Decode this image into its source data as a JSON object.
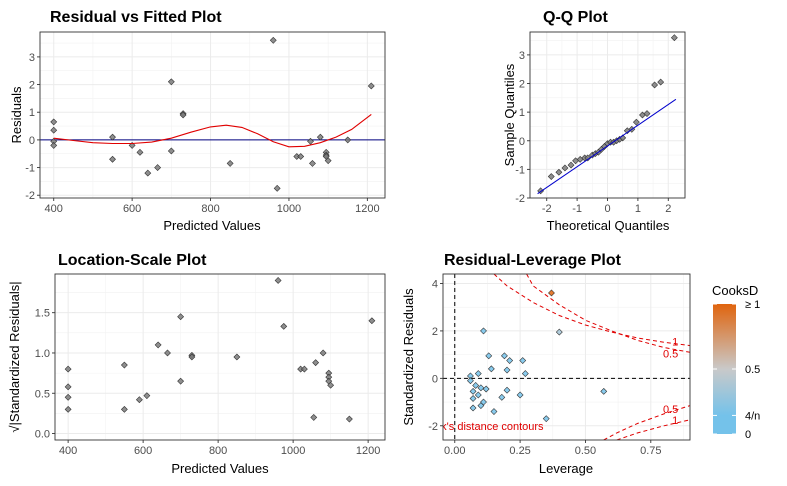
{
  "colors": {
    "point_fill": "#7a7a7a",
    "smooth": "#e00000",
    "zero_line": "#000080",
    "qq_line": "#0000cc",
    "contour": "#e00000",
    "cooks_low": "#74c2ea",
    "cooks_mid": "#c9c9c9",
    "cooks_high": "#e0640e"
  },
  "chart_data": [
    {
      "id": "rvf",
      "type": "scatter",
      "title": "Residual vs Fitted Plot",
      "xlabel": "Predicted Values",
      "ylabel": "Residuals",
      "xlim": [
        365,
        1245
      ],
      "ylim": [
        -2.1,
        3.9
      ],
      "xticks": [
        400,
        600,
        800,
        1000,
        1200
      ],
      "yticks": [
        -2,
        -1,
        0,
        1,
        2,
        3
      ],
      "xminor": [
        500,
        700,
        900,
        1100
      ],
      "yminor": [
        -1.5,
        -0.5,
        0.5,
        1.5,
        2.5,
        3.5
      ],
      "hline": 0,
      "points": [
        {
          "x": 400,
          "y": 0.65
        },
        {
          "x": 400,
          "y": 0.35
        },
        {
          "x": 400,
          "y": -0.05
        },
        {
          "x": 400,
          "y": -0.2
        },
        {
          "x": 550,
          "y": 0.1
        },
        {
          "x": 550,
          "y": -0.7
        },
        {
          "x": 600,
          "y": -0.2
        },
        {
          "x": 620,
          "y": -0.45
        },
        {
          "x": 640,
          "y": -1.2
        },
        {
          "x": 665,
          "y": -1.0
        },
        {
          "x": 700,
          "y": 2.1
        },
        {
          "x": 700,
          "y": -0.4
        },
        {
          "x": 730,
          "y": 0.95
        },
        {
          "x": 730,
          "y": 0.9
        },
        {
          "x": 850,
          "y": -0.85
        },
        {
          "x": 960,
          "y": 3.6
        },
        {
          "x": 970,
          "y": -1.75
        },
        {
          "x": 1020,
          "y": -0.6
        },
        {
          "x": 1030,
          "y": -0.6
        },
        {
          "x": 1055,
          "y": -0.05
        },
        {
          "x": 1060,
          "y": -0.85
        },
        {
          "x": 1080,
          "y": 0.1
        },
        {
          "x": 1095,
          "y": -0.45
        },
        {
          "x": 1095,
          "y": -0.55
        },
        {
          "x": 1095,
          "y": -0.6
        },
        {
          "x": 1100,
          "y": -0.75
        },
        {
          "x": 1150,
          "y": 0
        },
        {
          "x": 1210,
          "y": 1.95
        }
      ],
      "smooth": [
        {
          "x": 400,
          "y": 0.06
        },
        {
          "x": 450,
          "y": -0.02
        },
        {
          "x": 500,
          "y": -0.1
        },
        {
          "x": 550,
          "y": -0.13
        },
        {
          "x": 600,
          "y": -0.13
        },
        {
          "x": 650,
          "y": -0.08
        },
        {
          "x": 700,
          "y": 0.06
        },
        {
          "x": 750,
          "y": 0.28
        },
        {
          "x": 800,
          "y": 0.47
        },
        {
          "x": 840,
          "y": 0.53
        },
        {
          "x": 880,
          "y": 0.45
        },
        {
          "x": 920,
          "y": 0.22
        },
        {
          "x": 960,
          "y": -0.07
        },
        {
          "x": 1000,
          "y": -0.25
        },
        {
          "x": 1040,
          "y": -0.23
        },
        {
          "x": 1080,
          "y": -0.1
        },
        {
          "x": 1120,
          "y": 0.1
        },
        {
          "x": 1160,
          "y": 0.38
        },
        {
          "x": 1210,
          "y": 0.92
        }
      ]
    },
    {
      "id": "qq",
      "type": "scatter",
      "title": "Q-Q Plot",
      "xlabel": "Theoretical Quantiles",
      "ylabel": "Sample Quantiles",
      "xlim": [
        -2.55,
        2.55
      ],
      "ylim": [
        -2.0,
        3.8
      ],
      "xticks": [
        -2,
        -1,
        0,
        1,
        2
      ],
      "yticks": [
        -2,
        -1,
        0,
        1,
        2,
        3
      ],
      "xminor": [
        -1.5,
        -0.5,
        0.5,
        1.5
      ],
      "yminor": [
        -1.5,
        -0.5,
        0.5,
        1.5,
        2.5,
        3.5
      ],
      "line": [
        {
          "x": -2.3,
          "y": -1.85
        },
        {
          "x": 2.25,
          "y": 1.45
        }
      ],
      "points": [
        {
          "x": -2.2,
          "y": -1.75
        },
        {
          "x": -1.85,
          "y": -1.25
        },
        {
          "x": -1.6,
          "y": -1.1
        },
        {
          "x": -1.4,
          "y": -0.95
        },
        {
          "x": -1.2,
          "y": -0.85
        },
        {
          "x": -1.05,
          "y": -0.7
        },
        {
          "x": -0.9,
          "y": -0.65
        },
        {
          "x": -0.75,
          "y": -0.6
        },
        {
          "x": -0.65,
          "y": -0.6
        },
        {
          "x": -0.5,
          "y": -0.5
        },
        {
          "x": -0.4,
          "y": -0.45
        },
        {
          "x": -0.3,
          "y": -0.4
        },
        {
          "x": -0.2,
          "y": -0.3
        },
        {
          "x": -0.1,
          "y": -0.2
        },
        {
          "x": 0.0,
          "y": -0.1
        },
        {
          "x": 0.1,
          "y": -0.05
        },
        {
          "x": 0.2,
          "y": -0.05
        },
        {
          "x": 0.3,
          "y": 0.0
        },
        {
          "x": 0.4,
          "y": 0.05
        },
        {
          "x": 0.5,
          "y": 0.1
        },
        {
          "x": 0.65,
          "y": 0.35
        },
        {
          "x": 0.8,
          "y": 0.4
        },
        {
          "x": 0.95,
          "y": 0.65
        },
        {
          "x": 1.15,
          "y": 0.9
        },
        {
          "x": 1.3,
          "y": 0.95
        },
        {
          "x": 1.55,
          "y": 1.95
        },
        {
          "x": 1.75,
          "y": 2.05
        },
        {
          "x": 2.2,
          "y": 3.6
        }
      ]
    },
    {
      "id": "ls",
      "type": "scatter",
      "title": "Location-Scale Plot",
      "xlabel": "Predicted Values",
      "ylabel": "√|Standardized Residuals|",
      "xlim": [
        365,
        1245
      ],
      "ylim": [
        -0.08,
        1.98
      ],
      "xticks": [
        400,
        600,
        800,
        1000,
        1200
      ],
      "yticks": [
        0.0,
        0.5,
        1.0,
        1.5
      ],
      "ytick_labels": [
        "0.0",
        "0.5",
        "1.0",
        "1.5"
      ],
      "xminor": [
        500,
        700,
        900,
        1100
      ],
      "yminor": [
        0.25,
        0.75,
        1.25,
        1.75
      ],
      "points": [
        {
          "x": 400,
          "y": 0.8
        },
        {
          "x": 400,
          "y": 0.58
        },
        {
          "x": 400,
          "y": 0.45
        },
        {
          "x": 400,
          "y": 0.3
        },
        {
          "x": 550,
          "y": 0.85
        },
        {
          "x": 550,
          "y": 0.3
        },
        {
          "x": 590,
          "y": 0.42
        },
        {
          "x": 610,
          "y": 0.47
        },
        {
          "x": 640,
          "y": 1.1
        },
        {
          "x": 665,
          "y": 1.0
        },
        {
          "x": 700,
          "y": 1.45
        },
        {
          "x": 700,
          "y": 0.65
        },
        {
          "x": 730,
          "y": 0.97
        },
        {
          "x": 730,
          "y": 0.95
        },
        {
          "x": 850,
          "y": 0.95
        },
        {
          "x": 960,
          "y": 1.9
        },
        {
          "x": 975,
          "y": 1.33
        },
        {
          "x": 1020,
          "y": 0.8
        },
        {
          "x": 1030,
          "y": 0.8
        },
        {
          "x": 1055,
          "y": 0.2
        },
        {
          "x": 1060,
          "y": 0.88
        },
        {
          "x": 1080,
          "y": 1.0
        },
        {
          "x": 1095,
          "y": 0.75
        },
        {
          "x": 1095,
          "y": 0.7
        },
        {
          "x": 1095,
          "y": 0.65
        },
        {
          "x": 1100,
          "y": 0.6
        },
        {
          "x": 1150,
          "y": 0.18
        },
        {
          "x": 1210,
          "y": 1.4
        }
      ]
    },
    {
      "id": "rl",
      "type": "scatter",
      "title": "Residual-Leverage Plot",
      "xlabel": "Leverage",
      "ylabel": "Standardized Residuals",
      "xlim": [
        -0.045,
        0.9
      ],
      "ylim": [
        -2.6,
        4.4
      ],
      "xticks": [
        0,
        0.25,
        0.5,
        0.75
      ],
      "xtick_labels": [
        "0.00",
        "0.25",
        "0.50",
        "0.75"
      ],
      "yticks": [
        -2,
        0,
        2,
        4
      ],
      "xminor": [
        0.125,
        0.375,
        0.625,
        0.875
      ],
      "yminor": [
        -1,
        1,
        3
      ],
      "vline": 0,
      "hline": 0,
      "contour_label": "Cook's distance contours",
      "contour_tags": [
        {
          "text": "1",
          "x": 0.855,
          "y": 1.55
        },
        {
          "text": "0.5",
          "x": 0.855,
          "y": 1.05
        },
        {
          "text": "0.5",
          "x": 0.855,
          "y": -1.3
        },
        {
          "text": "1",
          "x": 0.855,
          "y": -1.75
        }
      ],
      "contours": [
        {
          "level": 1,
          "points": [
            {
              "x": 0.15,
              "y": 4.4
            },
            {
              "x": 0.2,
              "y": 3.9
            },
            {
              "x": 0.3,
              "y": 3.2
            },
            {
              "x": 0.4,
              "y": 2.65
            },
            {
              "x": 0.5,
              "y": 2.25
            },
            {
              "x": 0.6,
              "y": 1.95
            },
            {
              "x": 0.7,
              "y": 1.7
            },
            {
              "x": 0.8,
              "y": 1.52
            },
            {
              "x": 0.9,
              "y": 1.38
            }
          ]
        },
        {
          "level": 0.5,
          "points": [
            {
              "x": 0.275,
              "y": 4.4
            },
            {
              "x": 0.3,
              "y": 3.9
            },
            {
              "x": 0.4,
              "y": 3.1
            },
            {
              "x": 0.5,
              "y": 2.45
            },
            {
              "x": 0.6,
              "y": 2.0
            },
            {
              "x": 0.7,
              "y": 1.6
            },
            {
              "x": 0.8,
              "y": 1.3
            },
            {
              "x": 0.9,
              "y": 1.1
            }
          ]
        },
        {
          "level": 0.5,
          "points": [
            {
              "x": 0.57,
              "y": -2.6
            },
            {
              "x": 0.62,
              "y": -2.3
            },
            {
              "x": 0.7,
              "y": -1.9
            },
            {
              "x": 0.8,
              "y": -1.5
            },
            {
              "x": 0.9,
              "y": -1.15
            }
          ]
        },
        {
          "level": 1,
          "points": [
            {
              "x": 0.62,
              "y": -2.6
            },
            {
              "x": 0.7,
              "y": -2.3
            },
            {
              "x": 0.8,
              "y": -2.0
            },
            {
              "x": 0.9,
              "y": -1.75
            }
          ]
        }
      ],
      "points": [
        {
          "x": 0.37,
          "y": 3.6,
          "c": 1.0
        },
        {
          "x": 0.4,
          "y": 1.95,
          "c": 0.35
        },
        {
          "x": 0.11,
          "y": 2.0,
          "c": 0.05
        },
        {
          "x": 0.13,
          "y": 0.95,
          "c": 0.05
        },
        {
          "x": 0.19,
          "y": 0.95,
          "c": 0.05
        },
        {
          "x": 0.21,
          "y": 0.75,
          "c": 0.05
        },
        {
          "x": 0.26,
          "y": 0.75,
          "c": 0.05
        },
        {
          "x": 0.14,
          "y": 0.4,
          "c": 0.05
        },
        {
          "x": 0.2,
          "y": 0.35,
          "c": 0.05
        },
        {
          "x": 0.06,
          "y": 0.1,
          "c": 0.05
        },
        {
          "x": 0.09,
          "y": 0.2,
          "c": 0.05
        },
        {
          "x": 0.27,
          "y": 0.2,
          "c": 0.05
        },
        {
          "x": 0.06,
          "y": -0.1,
          "c": 0.05
        },
        {
          "x": 0.08,
          "y": -0.3,
          "c": 0.05
        },
        {
          "x": 0.1,
          "y": -0.4,
          "c": 0.05
        },
        {
          "x": 0.12,
          "y": -0.45,
          "c": 0.05
        },
        {
          "x": 0.07,
          "y": -0.55,
          "c": 0.05
        },
        {
          "x": 0.09,
          "y": -0.7,
          "c": 0.05
        },
        {
          "x": 0.07,
          "y": -0.85,
          "c": 0.05
        },
        {
          "x": 0.11,
          "y": -1.0,
          "c": 0.05
        },
        {
          "x": 0.07,
          "y": -1.25,
          "c": 0.05
        },
        {
          "x": 0.15,
          "y": -1.4,
          "c": 0.05
        },
        {
          "x": 0.18,
          "y": -0.8,
          "c": 0.05
        },
        {
          "x": 0.2,
          "y": -0.5,
          "c": 0.05
        },
        {
          "x": 0.25,
          "y": -0.7,
          "c": 0.05
        },
        {
          "x": 0.1,
          "y": -1.15,
          "c": 0.05
        },
        {
          "x": 0.57,
          "y": -0.55,
          "c": 0.05
        },
        {
          "x": 0.35,
          "y": -1.7,
          "c": 0.08
        }
      ],
      "legend": {
        "title": "CooksD",
        "labels": [
          {
            "text": "≥ 1",
            "value": 1.0
          },
          {
            "text": "0.5",
            "value": 0.5
          },
          {
            "text": "4/n",
            "value": 0.143
          },
          {
            "text": "0",
            "value": 0.0
          }
        ]
      }
    }
  ]
}
